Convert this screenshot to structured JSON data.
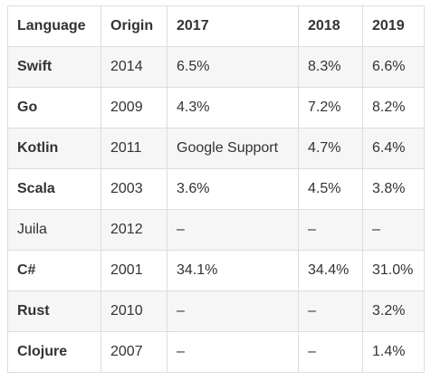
{
  "table": {
    "headers": [
      "Language",
      "Origin",
      "2017",
      "2018",
      "2019"
    ],
    "rows": [
      {
        "cells": [
          "Swift",
          "2014",
          "6.5%",
          "8.3%",
          "6.6%"
        ],
        "name_bold": true
      },
      {
        "cells": [
          "Go",
          "2009",
          "4.3%",
          "7.2%",
          "8.2%"
        ],
        "name_bold": true
      },
      {
        "cells": [
          "Kotlin",
          "2011",
          "Google Support",
          "4.7%",
          "6.4%"
        ],
        "name_bold": true
      },
      {
        "cells": [
          "Scala",
          "2003",
          "3.6%",
          "4.5%",
          "3.8%"
        ],
        "name_bold": true
      },
      {
        "cells": [
          "Juila",
          "2012",
          "–",
          "–",
          "–"
        ],
        "name_bold": false
      },
      {
        "cells": [
          "C#",
          "2001",
          "34.1%",
          "34.4%",
          "31.0%"
        ],
        "name_bold": true
      },
      {
        "cells": [
          "Rust",
          "2010",
          "–",
          "–",
          "3.2%"
        ],
        "name_bold": true
      },
      {
        "cells": [
          "Clojure",
          "2007",
          "–",
          "–",
          "1.4%"
        ],
        "name_bold": true
      }
    ]
  }
}
